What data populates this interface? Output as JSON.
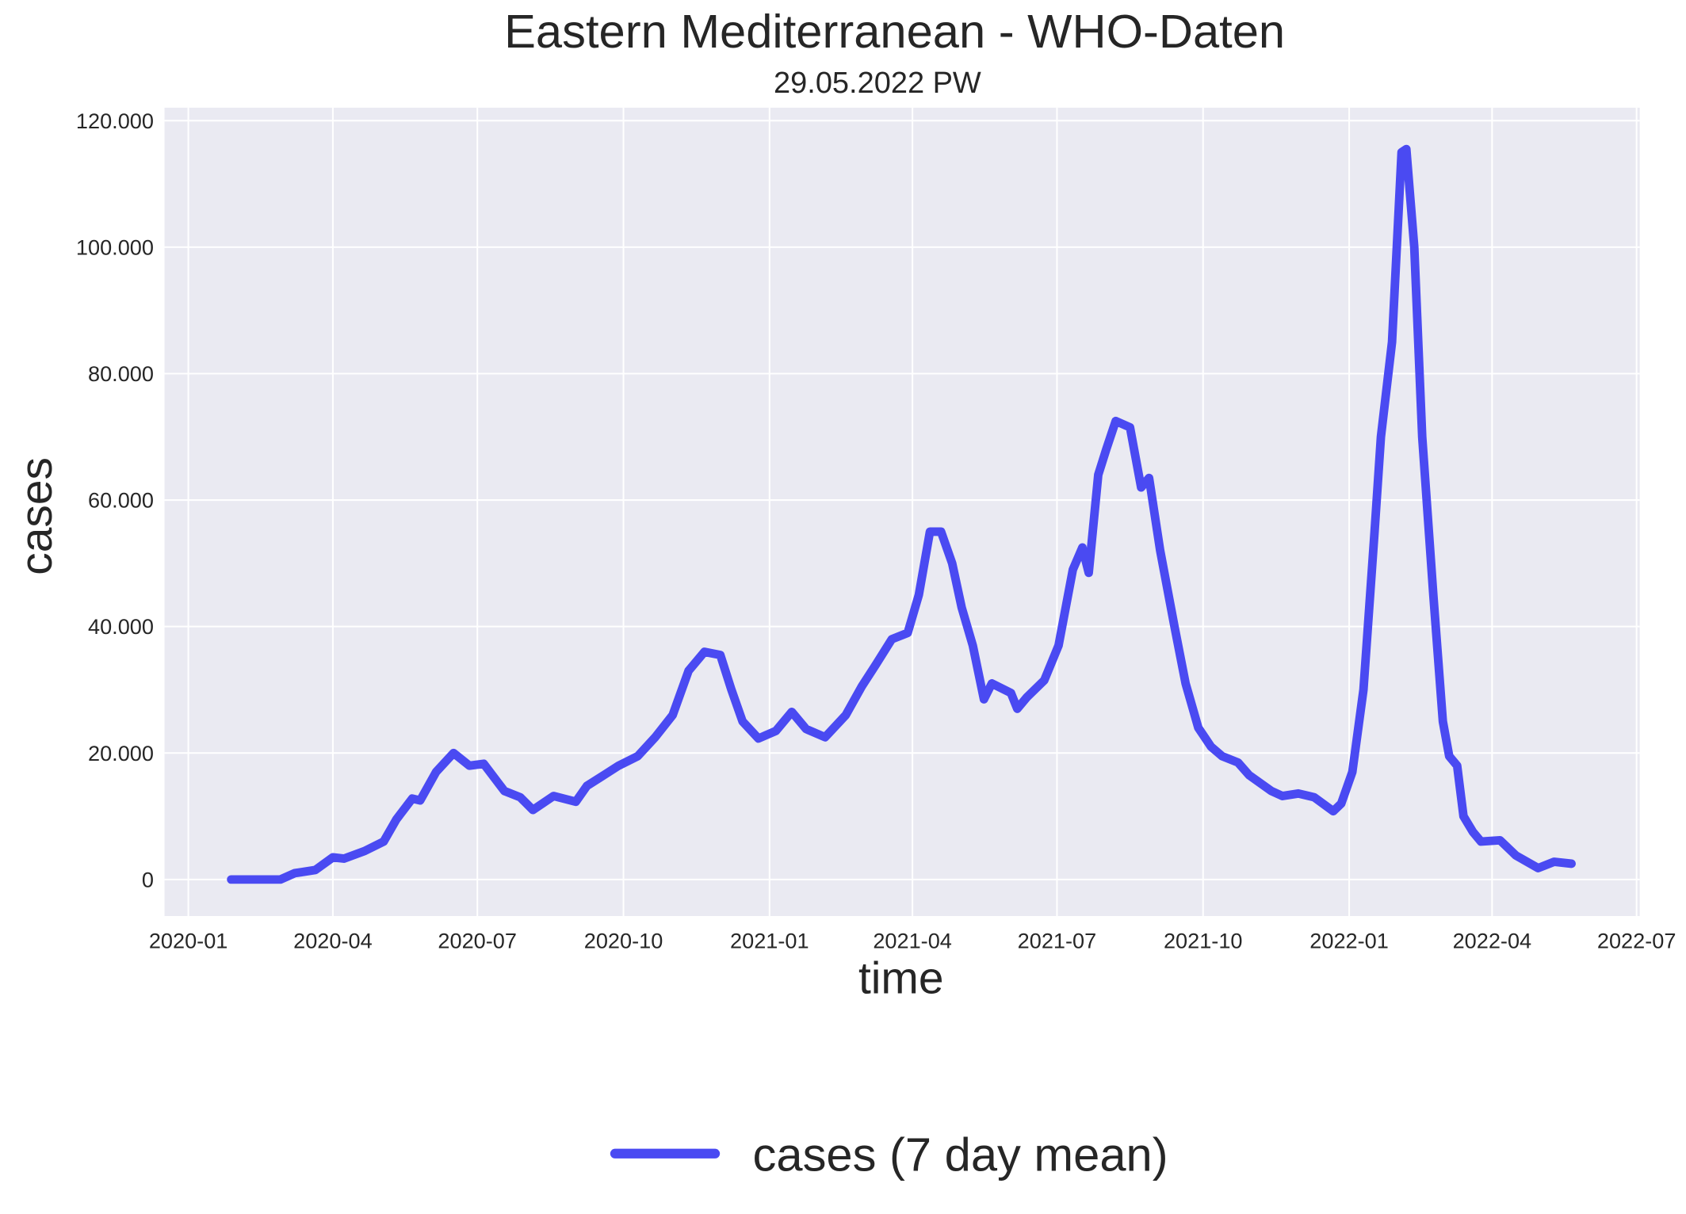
{
  "chart_data": {
    "type": "line",
    "title": "Eastern Mediterranean - WHO-Daten",
    "subtitle": "29.05.2022 PW",
    "xlabel": "time",
    "ylabel": "cases",
    "ylabel_color": "#0000ff",
    "x": [
      "2020-01-28",
      "2020-02-28",
      "2020-03-08",
      "2020-03-21",
      "2020-04-01",
      "2020-04-08",
      "2020-04-21",
      "2020-05-03",
      "2020-05-11",
      "2020-05-21",
      "2020-05-26",
      "2020-06-05",
      "2020-06-16",
      "2020-06-26",
      "2020-07-05",
      "2020-07-18",
      "2020-07-28",
      "2020-08-05",
      "2020-08-18",
      "2020-09-01",
      "2020-09-08",
      "2020-09-28",
      "2020-10-10",
      "2020-10-21",
      "2020-11-01",
      "2020-11-11",
      "2020-11-21",
      "2020-12-01",
      "2020-12-08",
      "2020-12-15",
      "2020-12-25",
      "2021-01-05",
      "2021-01-15",
      "2021-01-24",
      "2021-02-05",
      "2021-02-18",
      "2021-02-28",
      "2021-03-09",
      "2021-03-19",
      "2021-03-29",
      "2021-04-05",
      "2021-04-12",
      "2021-04-19",
      "2021-04-26",
      "2021-05-02",
      "2021-05-09",
      "2021-05-16",
      "2021-05-21",
      "2021-06-02",
      "2021-06-06",
      "2021-06-12",
      "2021-06-23",
      "2021-07-02",
      "2021-07-11",
      "2021-07-17",
      "2021-07-21",
      "2021-07-27",
      "2021-08-01",
      "2021-08-07",
      "2021-08-16",
      "2021-08-23",
      "2021-08-28",
      "2021-09-04",
      "2021-09-13",
      "2021-09-20",
      "2021-09-28",
      "2021-10-06",
      "2021-10-13",
      "2021-10-23",
      "2021-10-30",
      "2021-11-13",
      "2021-11-20",
      "2021-11-30",
      "2021-12-10",
      "2021-12-22",
      "2021-12-27",
      "2022-01-03",
      "2022-01-10",
      "2022-01-17",
      "2022-01-21",
      "2022-01-28",
      "2022-02-03",
      "2022-02-06",
      "2022-02-11",
      "2022-02-16",
      "2022-02-23",
      "2022-03-01",
      "2022-03-05",
      "2022-03-10",
      "2022-03-14",
      "2022-03-20",
      "2022-03-25",
      "2022-04-06",
      "2022-04-16",
      "2022-04-30",
      "2022-05-10",
      "2022-05-21"
    ],
    "series": [
      {
        "name": "cases (7 day mean)",
        "color": "#4a4af2",
        "values": [
          0,
          0,
          1000,
          1500,
          3500,
          3300,
          4500,
          6000,
          9500,
          12800,
          12500,
          17000,
          20000,
          18000,
          18300,
          14000,
          13000,
          11000,
          13200,
          12300,
          14800,
          18000,
          19500,
          22500,
          26000,
          33000,
          36000,
          35500,
          30000,
          25000,
          22300,
          23500,
          26500,
          23800,
          22500,
          26000,
          30500,
          34000,
          38000,
          39000,
          45000,
          55000,
          55000,
          50000,
          43000,
          37000,
          28500,
          31000,
          29500,
          27000,
          28800,
          31500,
          37000,
          49000,
          52500,
          48500,
          64000,
          68000,
          72500,
          71500,
          62000,
          63500,
          52000,
          40000,
          31000,
          24000,
          21000,
          19500,
          18500,
          16500,
          14000,
          13200,
          13600,
          13000,
          10800,
          12000,
          17000,
          30000,
          55000,
          70000,
          85000,
          115000,
          115500,
          100000,
          70000,
          45000,
          25000,
          19500,
          18000,
          10000,
          7500,
          6000,
          6200,
          3800,
          1800,
          2800,
          2500
        ]
      }
    ],
    "xlim": [
      "2019-12-17",
      "2022-07-03"
    ],
    "xticks": [
      "2020-01",
      "2020-04",
      "2020-07",
      "2020-10",
      "2021-01",
      "2021-04",
      "2021-07",
      "2021-10",
      "2022-01",
      "2022-04",
      "2022-07"
    ],
    "ylim": [
      -5780,
      122050
    ],
    "yticks": [
      0,
      {
        "value": 20000,
        "label": "20.000"
      },
      {
        "value": 40000,
        "label": "40.000"
      },
      {
        "value": 60000,
        "label": "60.000"
      },
      {
        "value": 80000,
        "label": "80.000"
      },
      {
        "value": 100000,
        "label": "100.000"
      },
      {
        "value": 120000,
        "label": "120.000"
      }
    ],
    "grid": true,
    "legend": "bottom"
  }
}
